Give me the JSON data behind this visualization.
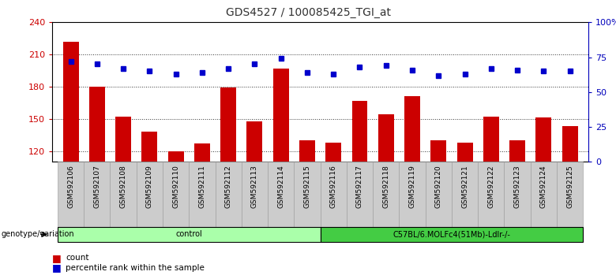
{
  "title": "GDS4527 / 100085425_TGI_at",
  "samples": [
    "GSM592106",
    "GSM592107",
    "GSM592108",
    "GSM592109",
    "GSM592110",
    "GSM592111",
    "GSM592112",
    "GSM592113",
    "GSM592114",
    "GSM592115",
    "GSM592116",
    "GSM592117",
    "GSM592118",
    "GSM592119",
    "GSM592120",
    "GSM592121",
    "GSM592122",
    "GSM592123",
    "GSM592124",
    "GSM592125"
  ],
  "counts": [
    222,
    180,
    152,
    138,
    120,
    127,
    179,
    148,
    197,
    130,
    128,
    167,
    154,
    171,
    130,
    128,
    152,
    130,
    151,
    143
  ],
  "percentile_ranks": [
    72,
    70,
    67,
    65,
    63,
    64,
    67,
    70,
    74,
    64,
    63,
    68,
    69,
    66,
    62,
    63,
    67,
    66,
    65,
    65
  ],
  "ylim_left": [
    110,
    240
  ],
  "ylim_right": [
    0,
    100
  ],
  "yticks_left": [
    120,
    150,
    180,
    210,
    240
  ],
  "yticks_right": [
    0,
    25,
    50,
    75,
    100
  ],
  "yticklabels_right": [
    "0",
    "25",
    "50",
    "75",
    "100%"
  ],
  "bar_color": "#cc0000",
  "dot_color": "#0000cc",
  "bar_bottom": 110,
  "groups": [
    {
      "label": "control",
      "start": 0,
      "end": 9,
      "color": "#aaffaa"
    },
    {
      "label": "C57BL/6.MOLFc4(51Mb)-Ldlr-/-",
      "start": 10,
      "end": 19,
      "color": "#44cc44"
    }
  ],
  "group_row_label": "genotype/variation",
  "legend_count_label": "count",
  "legend_pct_label": "percentile rank within the sample",
  "bar_color_legend": "#cc0000",
  "dot_color_legend": "#0000cc",
  "xlabel_color": "#cc0000",
  "right_axis_color": "#0000bb",
  "tick_area_bg": "#cccccc",
  "background_color": "#ffffff"
}
